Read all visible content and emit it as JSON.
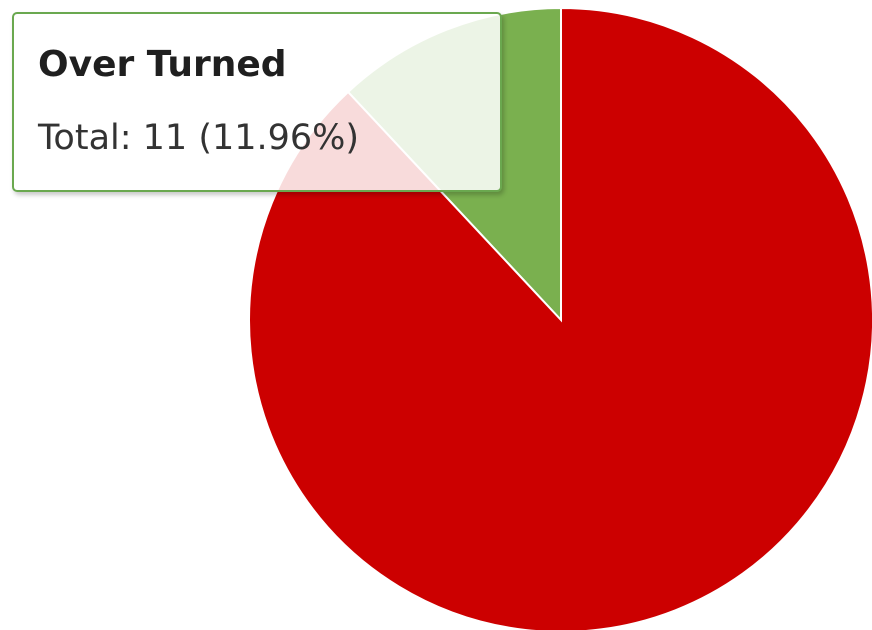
{
  "chart_data": {
    "type": "pie",
    "slices": [
      {
        "name": "Over Turned",
        "value": 11,
        "percent": 11.96,
        "color": "#7ab04f"
      },
      {
        "name": "",
        "value": 81,
        "percent": 88.04,
        "color": "#cc0000"
      }
    ],
    "tooltip": {
      "title": "Over Turned",
      "body": "Total: 11 (11.96%)"
    },
    "hovered_slice": "Over Turned",
    "legend": "none"
  }
}
